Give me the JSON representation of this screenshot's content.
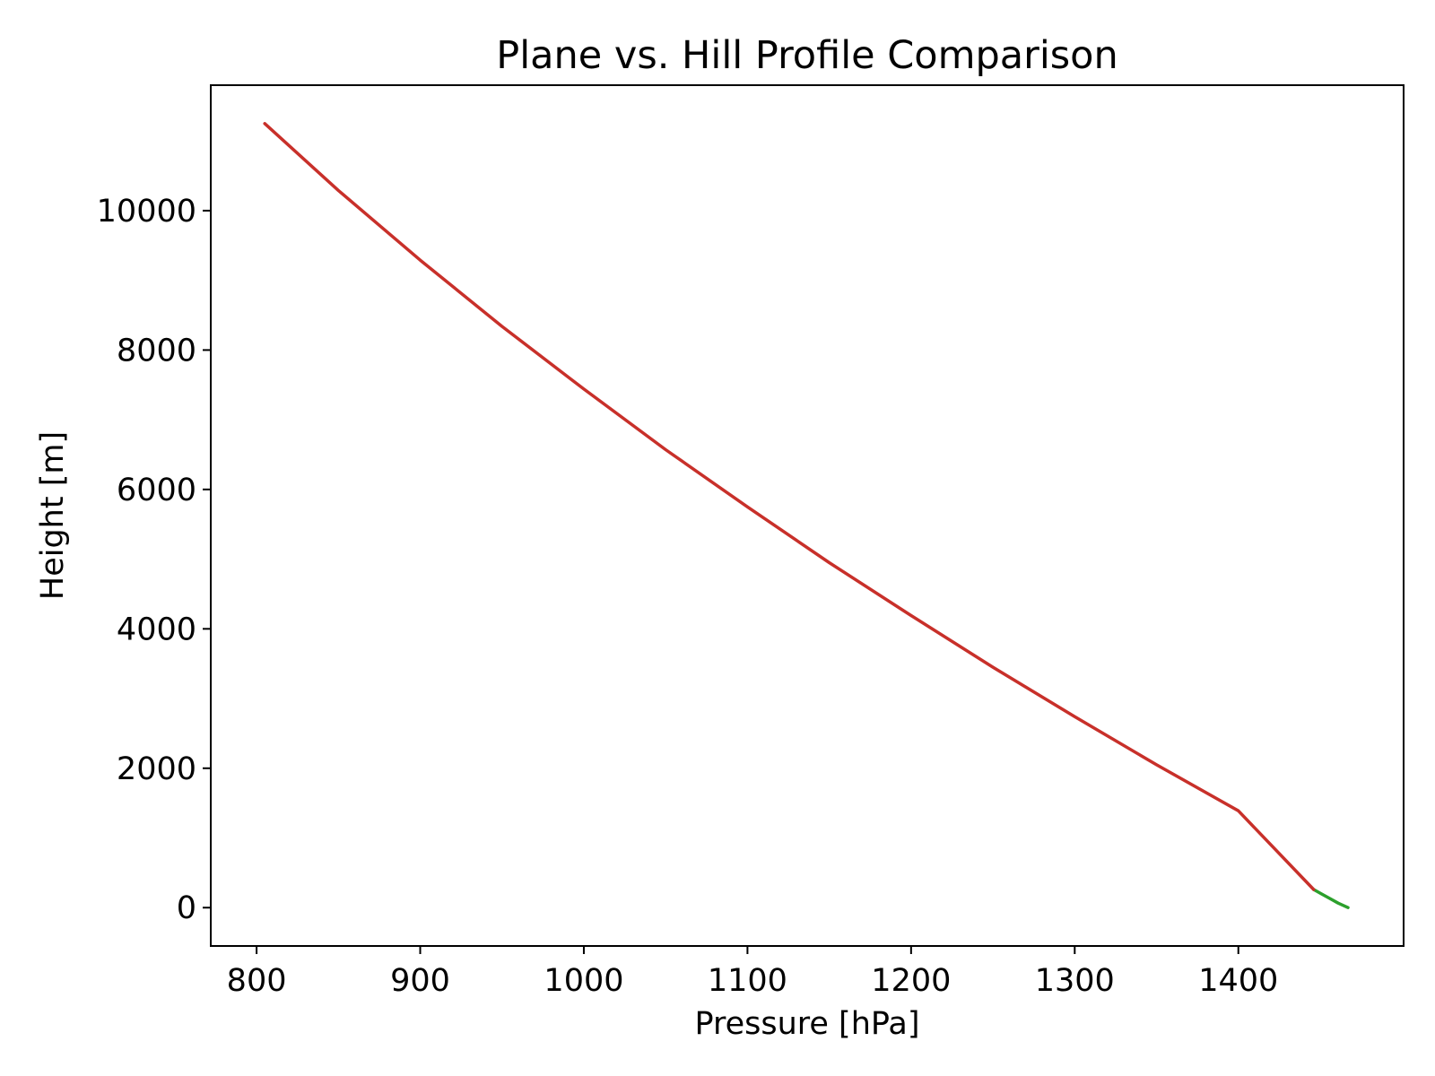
{
  "chart_data": {
    "type": "line",
    "title": "Plane vs. Hill Profile Comparison",
    "xlabel": "Pressure [hPa]",
    "ylabel": "Height [m]",
    "xlim": [
      772,
      1501
    ],
    "ylim": [
      -550,
      11800
    ],
    "xticks": [
      800,
      900,
      1000,
      1100,
      1200,
      1300,
      1400
    ],
    "yticks": [
      0,
      2000,
      4000,
      6000,
      8000,
      10000
    ],
    "grid": false,
    "legend": "none",
    "series": [
      {
        "color": "#2ca02c",
        "x": [
          1446,
          1451,
          1456,
          1461,
          1467
        ],
        "y": [
          260,
          195,
          130,
          65,
          0
        ]
      },
      {
        "color": "#c8302a",
        "x": [
          805,
          850,
          900,
          950,
          1000,
          1050,
          1100,
          1150,
          1200,
          1250,
          1300,
          1350,
          1400,
          1446
        ],
        "y": [
          11250,
          10290,
          9290,
          8340,
          7440,
          6570,
          5750,
          4950,
          4190,
          3450,
          2740,
          2050,
          1390,
          260
        ]
      }
    ]
  }
}
